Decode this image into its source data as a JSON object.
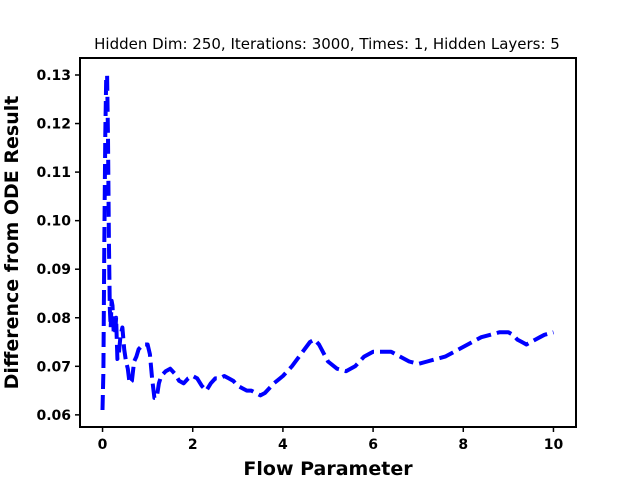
{
  "chart_data": {
    "type": "line",
    "title": "Hidden Dim: 250, Iterations: 3000, Times: 1, Hidden Layers: 5",
    "xlabel": "Flow Parameter",
    "ylabel": "Difference from ODE Result",
    "xlim": [
      -0.5,
      10.5
    ],
    "ylim": [
      0.0575,
      0.1335
    ],
    "xticks": [
      0,
      2,
      4,
      6,
      8,
      10
    ],
    "yticks": [
      0.06,
      0.07,
      0.08,
      0.09,
      0.1,
      0.11,
      0.12,
      0.13
    ],
    "ytick_labels": [
      "0.06",
      "0.07",
      "0.08",
      "0.09",
      "0.10",
      "0.11",
      "0.12",
      "0.13"
    ],
    "grid": false,
    "line_style": "dashed",
    "series": [
      {
        "color": "#0000ff",
        "x": [
          0.0,
          0.02,
          0.04,
          0.06,
          0.08,
          0.1,
          0.12,
          0.14,
          0.16,
          0.18,
          0.2,
          0.22,
          0.25,
          0.28,
          0.3,
          0.33,
          0.36,
          0.4,
          0.44,
          0.48,
          0.52,
          0.56,
          0.6,
          0.65,
          0.7,
          0.75,
          0.8,
          0.9,
          1.0,
          1.05,
          1.1,
          1.15,
          1.2,
          1.25,
          1.3,
          1.4,
          1.5,
          1.6,
          1.7,
          1.8,
          1.9,
          2.0,
          2.1,
          2.2,
          2.3,
          2.4,
          2.5,
          2.6,
          2.7,
          2.8,
          2.9,
          3.0,
          3.1,
          3.2,
          3.3,
          3.4,
          3.5,
          3.6,
          3.8,
          4.0,
          4.2,
          4.4,
          4.6,
          4.7,
          4.8,
          5.0,
          5.2,
          5.4,
          5.6,
          5.8,
          6.0,
          6.2,
          6.4,
          6.6,
          6.8,
          7.0,
          7.2,
          7.4,
          7.6,
          7.8,
          8.0,
          8.2,
          8.4,
          8.6,
          8.8,
          9.0,
          9.1,
          9.2,
          9.3,
          9.4,
          9.5,
          9.6,
          9.7,
          9.8,
          10.0
        ],
        "y": [
          0.061,
          0.069,
          0.095,
          0.118,
          0.1295,
          0.13,
          0.117,
          0.096,
          0.082,
          0.078,
          0.0835,
          0.0825,
          0.0765,
          0.077,
          0.08,
          0.0715,
          0.0725,
          0.0765,
          0.078,
          0.0735,
          0.071,
          0.0695,
          0.0665,
          0.067,
          0.071,
          0.072,
          0.0735,
          0.0745,
          0.0745,
          0.0725,
          0.0675,
          0.0635,
          0.0635,
          0.0665,
          0.068,
          0.069,
          0.0695,
          0.0685,
          0.067,
          0.0665,
          0.0675,
          0.068,
          0.0675,
          0.066,
          0.065,
          0.0665,
          0.0675,
          0.0675,
          0.068,
          0.0675,
          0.067,
          0.066,
          0.0655,
          0.065,
          0.065,
          0.0645,
          0.064,
          0.0645,
          0.0665,
          0.068,
          0.07,
          0.0725,
          0.075,
          0.0755,
          0.0745,
          0.071,
          0.0695,
          0.069,
          0.07,
          0.072,
          0.073,
          0.073,
          0.073,
          0.072,
          0.071,
          0.0705,
          0.071,
          0.0715,
          0.072,
          0.073,
          0.074,
          0.075,
          0.076,
          0.0765,
          0.077,
          0.077,
          0.0765,
          0.0755,
          0.075,
          0.0745,
          0.075,
          0.0755,
          0.076,
          0.0765,
          0.077
        ]
      }
    ]
  }
}
